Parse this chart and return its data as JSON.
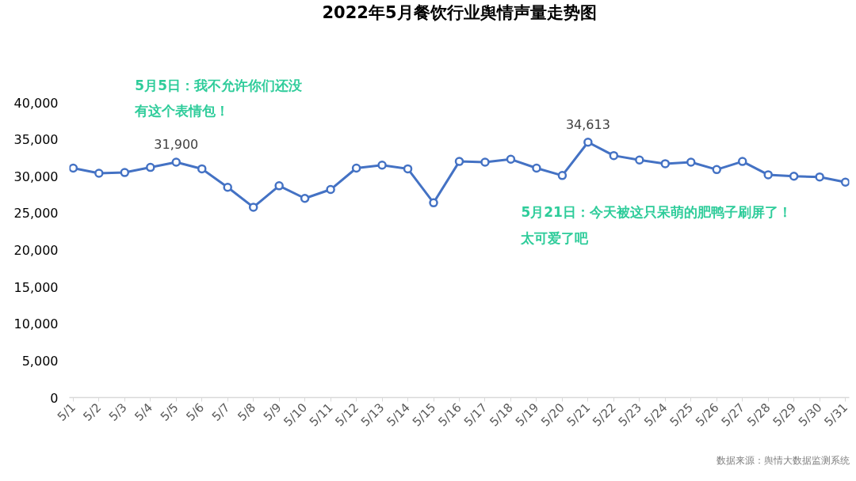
{
  "chart_data": {
    "type": "line",
    "title": "2022年5月餐饮行业舆情声量走势图",
    "categories": [
      "5/1",
      "5/2",
      "5/3",
      "5/4",
      "5/5",
      "5/6",
      "5/7",
      "5/8",
      "5/9",
      "5/10",
      "5/11",
      "5/12",
      "5/13",
      "5/14",
      "5/15",
      "5/16",
      "5/17",
      "5/18",
      "5/19",
      "5/20",
      "5/21",
      "5/22",
      "5/23",
      "5/24",
      "5/25",
      "5/26",
      "5/27",
      "5/28",
      "5/29",
      "5/30",
      "5/31"
    ],
    "series": [
      {
        "color": "#4472c4",
        "values": [
          31100,
          30400,
          30500,
          31200,
          31900,
          31000,
          28500,
          25800,
          28700,
          27000,
          28200,
          31100,
          31500,
          31000,
          26400,
          32000,
          31900,
          32300,
          31100,
          30100,
          34613,
          32800,
          32200,
          31700,
          31900,
          30900,
          32000,
          30200,
          30000,
          29900,
          29200
        ],
        "value_labels": [
          null,
          null,
          null,
          null,
          "31,900",
          null,
          null,
          null,
          null,
          null,
          null,
          null,
          null,
          null,
          null,
          null,
          null,
          null,
          null,
          null,
          "34,613",
          null,
          null,
          null,
          null,
          null,
          null,
          null,
          null,
          null,
          null
        ]
      }
    ],
    "ylim": [
      0,
      40000
    ],
    "yticks": [
      {
        "value": 0,
        "label": "0"
      },
      {
        "value": 5000,
        "label": "5,000"
      },
      {
        "value": 10000,
        "label": "10,000"
      },
      {
        "value": 15000,
        "label": "15,000"
      },
      {
        "value": 20000,
        "label": "20,000"
      },
      {
        "value": 25000,
        "label": "25,000"
      },
      {
        "value": 30000,
        "label": "30,000"
      },
      {
        "value": 35000,
        "label": "35,000"
      },
      {
        "value": 40000,
        "label": "40,000"
      }
    ],
    "marker": "circle",
    "line_style": "solid",
    "annotations": [
      "5月5日：我不允许你们还没有这个表情包！",
      "5月21日：今天被这只呆萌的肥鸭子刷屏了！太可爱了吧",
      "数据来源：舆情大数据监测系统"
    ]
  }
}
